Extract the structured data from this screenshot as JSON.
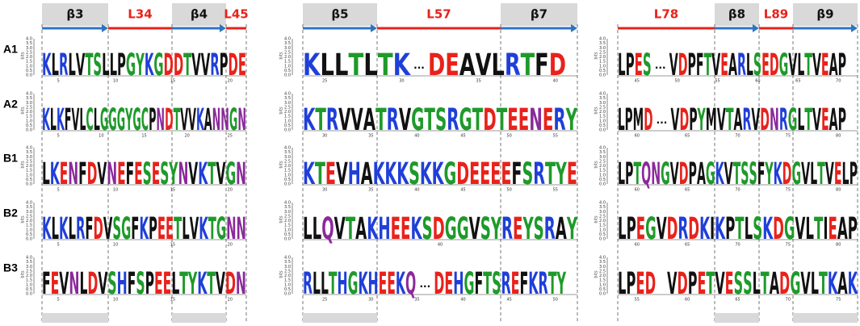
{
  "panels": [
    {
      "headers": [
        "β3",
        "L34",
        "β4",
        "L45"
      ],
      "logos": [
        {
          "segments": [
            "KLRLVTSLLPGYKGDDTVVRPDE"
          ],
          "xticks": [
            "5",
            "10",
            "15",
            "20"
          ]
        },
        {
          "segments": [
            "KLKFVLCLGGGYGCPNDTVVKANNGN"
          ],
          "xticks": [
            "5",
            "10",
            "15",
            "20",
            "25"
          ]
        },
        {
          "segments": [
            "LKENFDVNEFESESYNVKTVGN"
          ],
          "xticks": [
            "5",
            "10",
            "15",
            "20"
          ]
        },
        {
          "segments": [
            "KLKLRFDVSGFKPEETLVKTGNN"
          ],
          "xticks": [
            "5",
            "10",
            "15",
            "20"
          ]
        },
        {
          "segments": [
            "FEVNLDVSHFSPEELTYKTVDN"
          ],
          "xticks": [
            "5",
            "10",
            "15",
            "20"
          ]
        }
      ]
    },
    {
      "headers": [
        "β5",
        "L57",
        "β7"
      ],
      "logos": [
        {
          "segments": [
            "KLLTLTK",
            "...",
            "DEAVLRTFD"
          ],
          "xticks": [
            "25",
            "30",
            "35",
            "40"
          ]
        },
        {
          "segments": [
            "KTRVVATRVGTSRGTDTEENERY"
          ],
          "xticks": [
            "30",
            "35",
            "40",
            "45",
            "50",
            "55"
          ]
        },
        {
          "segments": [
            "KTEVHAKKKSKKGDEEEEFSRTYE"
          ],
          "xticks": [
            "30",
            "35",
            "40",
            "45",
            "50",
            "55"
          ]
        },
        {
          "segments": [
            "LLQVTAKHEEKSDGGVSYREYSRAY"
          ],
          "xticks": [
            "40"
          ]
        },
        {
          "segments": [
            "RLLTHGKHEEKQ",
            "...",
            "DEHGFTSREFKRTY"
          ],
          "xticks": [
            "25",
            "30",
            "35",
            "40",
            "45",
            "50"
          ]
        }
      ]
    },
    {
      "headers": [
        "L78",
        "β8",
        "L89",
        "β9"
      ],
      "logos": [
        {
          "segments": [
            "LPES",
            "...",
            "VDPFTVEARLSEDGVLTVEAP"
          ],
          "xticks": [
            "45",
            "50",
            "55",
            "60",
            "65",
            "70"
          ]
        },
        {
          "segments": [
            "LPMD",
            "...",
            "VDPYMVTARVDNRGLTVEAP"
          ],
          "xticks": [
            "60",
            "65",
            "70",
            "75",
            "80"
          ]
        },
        {
          "segments": [
            "LPTQNGVDPAGKVTSSFYKDGVLTVELP"
          ],
          "xticks": [
            "60",
            "65",
            "70",
            "75",
            "80"
          ]
        },
        {
          "segments": [
            "LPEGVDRDKIKPTLSKDGVLTIEAP"
          ],
          "xticks": [
            "60",
            "65",
            "70",
            "75",
            "80"
          ]
        },
        {
          "segments": [
            "LPED",
            "VDPETVESSLTADGVLTKAK"
          ],
          "xticks": [
            "55",
            "60",
            "65",
            "70",
            "75"
          ]
        }
      ]
    }
  ],
  "row_labels": [
    "A1",
    "A2",
    "B1",
    "B2",
    "B3"
  ],
  "y_axis_label": "bits",
  "y_ticks": [
    "0.0",
    "0.5",
    "1.0",
    "1.5",
    "2.0",
    "2.5",
    "3.0",
    "3.5",
    "4.0"
  ]
}
